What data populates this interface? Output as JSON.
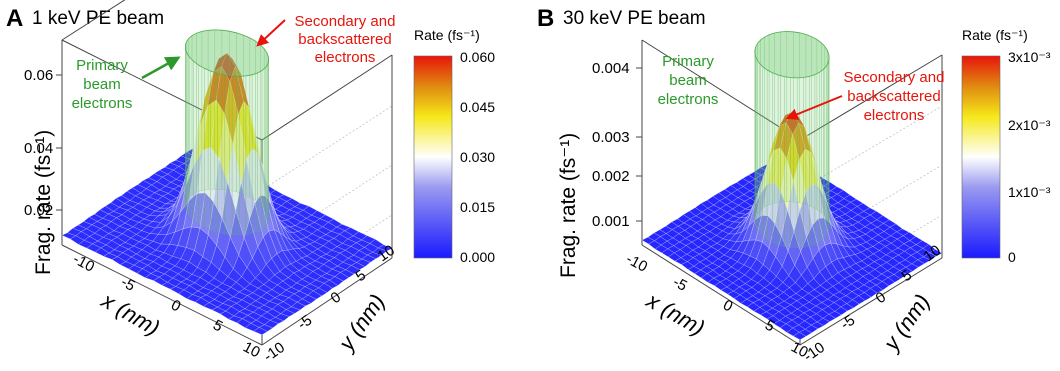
{
  "panels": [
    {
      "letter": "A",
      "title": "1 keV PE beam",
      "zlabel": "Frag. rate (fs⁻¹)",
      "xlabel": "x (nm)",
      "ylabel": "y (nm)",
      "ann_red": [
        "Secondary and",
        "backscattered",
        "electrons"
      ],
      "ann_green": [
        "Primary",
        "beam",
        "electrons"
      ],
      "colorbar_title": "Rate (fs⁻¹)",
      "colorbar_ticks": [
        "0.060",
        "0.045",
        "0.030",
        "0.015",
        "0.000"
      ]
    },
    {
      "letter": "B",
      "title": "30 keV PE beam",
      "zlabel": "Frag. rate (fs⁻¹)",
      "xlabel": "x (nm)",
      "ylabel": "y (nm)",
      "ann_red": [
        "Secondary and",
        "backscattered",
        "electrons"
      ],
      "ann_green": [
        "Primary",
        "beam",
        "electrons"
      ],
      "colorbar_title": "Rate (fs⁻¹)",
      "colorbar_ticks": [
        "3x10⁻³",
        "2x10⁻³",
        "1x10⁻³",
        "0"
      ]
    }
  ],
  "colors": {
    "high": "#e8140c",
    "mid_high": "#f5e81a",
    "mid": "#ffffff",
    "low": "#1a1aff",
    "primary_beam": "#7ccf7c",
    "annotation_red": "#e8140c",
    "annotation_green": "#2b9a2b"
  },
  "chart_data": [
    {
      "type": "surface",
      "title": "1 keV PE beam",
      "xlabel": "x (nm)",
      "ylabel": "y (nm)",
      "zlabel": "Frag. rate (fs⁻¹)",
      "x_ticks": [
        -10,
        -5,
        0,
        5,
        10
      ],
      "y_ticks": [
        -10,
        -5,
        0,
        5,
        10
      ],
      "z_ticks": [
        0.02,
        0.04,
        0.06
      ],
      "xlim": [
        -10,
        10
      ],
      "ylim": [
        -10,
        10
      ],
      "zlim": [
        0,
        0.065
      ],
      "primary_beam_radius_nm": 3.5,
      "primary_beam_rate": 0.062,
      "peak_rate": 0.062,
      "base_rate": 0.003,
      "colorbar_range": [
        0,
        0.06
      ],
      "colorbar_ticks": [
        0.0,
        0.015,
        0.03,
        0.045,
        0.06
      ]
    },
    {
      "type": "surface",
      "title": "30 keV PE beam",
      "xlabel": "x (nm)",
      "ylabel": "y (nm)",
      "zlabel": "Frag. rate (fs⁻¹)",
      "x_ticks": [
        -10,
        -5,
        0,
        5,
        10
      ],
      "y_ticks": [
        -10,
        -5,
        0,
        5,
        10
      ],
      "z_ticks": [
        0.001,
        0.002,
        0.003,
        0.004
      ],
      "xlim": [
        -10,
        10
      ],
      "ylim": [
        -10,
        10
      ],
      "zlim": [
        0,
        0.004
      ],
      "primary_beam_radius_nm": 3.5,
      "primary_beam_rate": 0.0041,
      "peak_rate": 0.0029,
      "base_rate": 0.0001,
      "colorbar_range": [
        0,
        0.003
      ],
      "colorbar_ticks": [
        0,
        0.001,
        0.002,
        0.003
      ]
    }
  ]
}
